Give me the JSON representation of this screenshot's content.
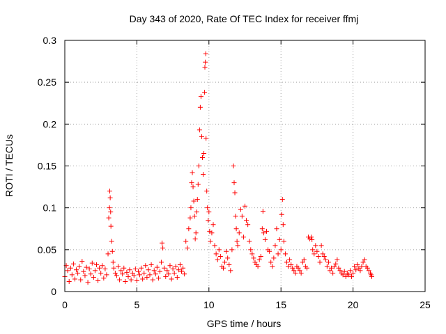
{
  "chart_data": {
    "type": "scatter",
    "title": "Day 343 of 2020, Rate Of TEC Index for receiver ffmj",
    "xlabel": "GPS time / hours",
    "ylabel": "ROTI / TECUs",
    "xlim": [
      0,
      25
    ],
    "ylim": [
      0,
      0.3
    ],
    "xticks": [
      "0",
      "5",
      "10",
      "15",
      "20",
      "25"
    ],
    "yticks": [
      "0",
      "0.05",
      "0.1",
      "0.15",
      "0.2",
      "0.25",
      "0.3"
    ],
    "grid": true,
    "marker": "plus",
    "color": "#ff0000",
    "series": [
      {
        "points": [
          [
            0.0,
            0.018
          ],
          [
            0.1,
            0.031
          ],
          [
            0.2,
            0.025
          ],
          [
            0.3,
            0.012
          ],
          [
            0.4,
            0.028
          ],
          [
            0.5,
            0.02
          ],
          [
            0.6,
            0.033
          ],
          [
            0.7,
            0.015
          ],
          [
            0.8,
            0.026
          ],
          [
            0.9,
            0.022
          ],
          [
            1.0,
            0.03
          ],
          [
            1.1,
            0.014
          ],
          [
            1.2,
            0.036
          ],
          [
            1.3,
            0.024
          ],
          [
            1.4,
            0.019
          ],
          [
            1.5,
            0.029
          ],
          [
            1.6,
            0.011
          ],
          [
            1.7,
            0.027
          ],
          [
            1.8,
            0.021
          ],
          [
            1.9,
            0.034
          ],
          [
            2.0,
            0.017
          ],
          [
            2.1,
            0.025
          ],
          [
            2.2,
            0.032
          ],
          [
            2.3,
            0.013
          ],
          [
            2.4,
            0.028
          ],
          [
            2.5,
            0.022
          ],
          [
            2.6,
            0.031
          ],
          [
            2.7,
            0.016
          ],
          [
            2.8,
            0.027
          ],
          [
            2.9,
            0.02
          ],
          [
            3.0,
            0.045
          ],
          [
            3.05,
            0.088
          ],
          [
            3.1,
            0.1
          ],
          [
            3.12,
            0.12
          ],
          [
            3.15,
            0.112
          ],
          [
            3.18,
            0.095
          ],
          [
            3.2,
            0.078
          ],
          [
            3.25,
            0.06
          ],
          [
            3.3,
            0.048
          ],
          [
            3.35,
            0.035
          ],
          [
            3.4,
            0.028
          ],
          [
            3.5,
            0.022
          ],
          [
            3.6,
            0.019
          ],
          [
            3.7,
            0.03
          ],
          [
            3.8,
            0.014
          ],
          [
            3.9,
            0.025
          ],
          [
            4.0,
            0.021
          ],
          [
            4.1,
            0.028
          ],
          [
            4.2,
            0.012
          ],
          [
            4.3,
            0.023
          ],
          [
            4.4,
            0.018
          ],
          [
            4.5,
            0.026
          ],
          [
            4.6,
            0.014
          ],
          [
            4.7,
            0.022
          ],
          [
            4.8,
            0.019
          ],
          [
            4.9,
            0.027
          ],
          [
            5.0,
            0.013
          ],
          [
            5.1,
            0.024
          ],
          [
            5.2,
            0.02
          ],
          [
            5.3,
            0.028
          ],
          [
            5.4,
            0.015
          ],
          [
            5.5,
            0.022
          ],
          [
            5.6,
            0.031
          ],
          [
            5.7,
            0.017
          ],
          [
            5.8,
            0.026
          ],
          [
            5.9,
            0.02
          ],
          [
            6.0,
            0.032
          ],
          [
            6.1,
            0.014
          ],
          [
            6.2,
            0.025
          ],
          [
            6.3,
            0.021
          ],
          [
            6.4,
            0.029
          ],
          [
            6.5,
            0.016
          ],
          [
            6.6,
            0.024
          ],
          [
            6.7,
            0.035
          ],
          [
            6.75,
            0.058
          ],
          [
            6.8,
            0.052
          ],
          [
            6.9,
            0.028
          ],
          [
            7.0,
            0.018
          ],
          [
            7.1,
            0.025
          ],
          [
            7.2,
            0.021
          ],
          [
            7.3,
            0.031
          ],
          [
            7.4,
            0.015
          ],
          [
            7.5,
            0.027
          ],
          [
            7.6,
            0.022
          ],
          [
            7.7,
            0.03
          ],
          [
            7.8,
            0.017
          ],
          [
            7.9,
            0.026
          ],
          [
            8.0,
            0.032
          ],
          [
            8.1,
            0.024
          ],
          [
            8.2,
            0.028
          ],
          [
            8.3,
            0.021
          ],
          [
            8.4,
            0.06
          ],
          [
            8.5,
            0.052
          ],
          [
            8.6,
            0.075
          ],
          [
            8.7,
            0.088
          ],
          [
            8.75,
            0.1
          ],
          [
            8.8,
            0.13
          ],
          [
            8.85,
            0.142
          ],
          [
            8.9,
            0.125
          ],
          [
            8.95,
            0.108
          ],
          [
            9.0,
            0.09
          ],
          [
            9.05,
            0.063
          ],
          [
            9.1,
            0.07
          ],
          [
            9.15,
            0.095
          ],
          [
            9.2,
            0.11
          ],
          [
            9.25,
            0.128
          ],
          [
            9.3,
            0.15
          ],
          [
            9.35,
            0.193
          ],
          [
            9.4,
            0.22
          ],
          [
            9.45,
            0.233
          ],
          [
            9.5,
            0.185
          ],
          [
            9.55,
            0.16
          ],
          [
            9.6,
            0.14
          ],
          [
            9.65,
            0.165
          ],
          [
            9.7,
            0.238
          ],
          [
            9.72,
            0.268
          ],
          [
            9.75,
            0.274
          ],
          [
            9.78,
            0.284
          ],
          [
            9.8,
            0.183
          ],
          [
            9.85,
            0.12
          ],
          [
            9.9,
            0.1
          ],
          [
            9.95,
            0.085
          ],
          [
            10.0,
            0.095
          ],
          [
            10.05,
            0.072
          ],
          [
            10.1,
            0.06
          ],
          [
            10.2,
            0.07
          ],
          [
            10.3,
            0.08
          ],
          [
            10.4,
            0.055
          ],
          [
            10.5,
            0.045
          ],
          [
            10.6,
            0.038
          ],
          [
            10.7,
            0.05
          ],
          [
            10.8,
            0.042
          ],
          [
            10.9,
            0.03
          ],
          [
            11.0,
            0.028
          ],
          [
            11.1,
            0.035
          ],
          [
            11.2,
            0.048
          ],
          [
            11.3,
            0.04
          ],
          [
            11.4,
            0.032
          ],
          [
            11.5,
            0.025
          ],
          [
            11.6,
            0.05
          ],
          [
            11.7,
            0.15
          ],
          [
            11.75,
            0.13
          ],
          [
            11.8,
            0.118
          ],
          [
            11.85,
            0.09
          ],
          [
            11.9,
            0.075
          ],
          [
            11.95,
            0.06
          ],
          [
            12.0,
            0.055
          ],
          [
            12.1,
            0.07
          ],
          [
            12.2,
            0.098
          ],
          [
            12.3,
            0.09
          ],
          [
            12.4,
            0.065
          ],
          [
            12.5,
            0.102
          ],
          [
            12.6,
            0.085
          ],
          [
            12.7,
            0.08
          ],
          [
            12.8,
            0.06
          ],
          [
            12.9,
            0.05
          ],
          [
            13.0,
            0.045
          ],
          [
            13.1,
            0.04
          ],
          [
            13.2,
            0.035
          ],
          [
            13.3,
            0.032
          ],
          [
            13.4,
            0.03
          ],
          [
            13.5,
            0.038
          ],
          [
            13.6,
            0.042
          ],
          [
            13.7,
            0.075
          ],
          [
            13.75,
            0.096
          ],
          [
            13.8,
            0.07
          ],
          [
            13.9,
            0.062
          ],
          [
            14.0,
            0.072
          ],
          [
            14.1,
            0.05
          ],
          [
            14.2,
            0.048
          ],
          [
            14.3,
            0.035
          ],
          [
            14.4,
            0.03
          ],
          [
            14.5,
            0.04
          ],
          [
            14.6,
            0.055
          ],
          [
            14.7,
            0.075
          ],
          [
            14.8,
            0.045
          ],
          [
            14.9,
            0.062
          ],
          [
            15.0,
            0.05
          ],
          [
            15.05,
            0.092
          ],
          [
            15.1,
            0.11
          ],
          [
            15.15,
            0.08
          ],
          [
            15.2,
            0.06
          ],
          [
            15.3,
            0.045
          ],
          [
            15.4,
            0.035
          ],
          [
            15.5,
            0.03
          ],
          [
            15.6,
            0.038
          ],
          [
            15.7,
            0.032
          ],
          [
            15.8,
            0.028
          ],
          [
            15.9,
            0.025
          ],
          [
            16.0,
            0.022
          ],
          [
            16.1,
            0.03
          ],
          [
            16.2,
            0.028
          ],
          [
            16.3,
            0.025
          ],
          [
            16.4,
            0.022
          ],
          [
            16.5,
            0.035
          ],
          [
            16.6,
            0.038
          ],
          [
            16.7,
            0.03
          ],
          [
            16.8,
            0.028
          ],
          [
            16.9,
            0.065
          ],
          [
            17.0,
            0.063
          ],
          [
            17.1,
            0.065
          ],
          [
            17.15,
            0.062
          ],
          [
            17.2,
            0.05
          ],
          [
            17.3,
            0.045
          ],
          [
            17.4,
            0.055
          ],
          [
            17.5,
            0.048
          ],
          [
            17.6,
            0.042
          ],
          [
            17.7,
            0.035
          ],
          [
            17.8,
            0.055
          ],
          [
            17.9,
            0.045
          ],
          [
            18.0,
            0.042
          ],
          [
            18.1,
            0.038
          ],
          [
            18.2,
            0.03
          ],
          [
            18.3,
            0.035
          ],
          [
            18.4,
            0.025
          ],
          [
            18.5,
            0.028
          ],
          [
            18.6,
            0.022
          ],
          [
            18.7,
            0.03
          ],
          [
            18.8,
            0.033
          ],
          [
            18.9,
            0.038
          ],
          [
            19.0,
            0.028
          ],
          [
            19.1,
            0.025
          ],
          [
            19.2,
            0.022
          ],
          [
            19.3,
            0.02
          ],
          [
            19.4,
            0.024
          ],
          [
            19.5,
            0.018
          ],
          [
            19.6,
            0.022
          ],
          [
            19.7,
            0.02
          ],
          [
            19.8,
            0.025
          ],
          [
            19.9,
            0.018
          ],
          [
            20.0,
            0.022
          ],
          [
            20.1,
            0.03
          ],
          [
            20.2,
            0.026
          ],
          [
            20.3,
            0.032
          ],
          [
            20.4,
            0.028
          ],
          [
            20.5,
            0.025
          ],
          [
            20.6,
            0.03
          ],
          [
            20.7,
            0.035
          ],
          [
            20.8,
            0.038
          ],
          [
            20.9,
            0.03
          ],
          [
            21.0,
            0.028
          ],
          [
            21.1,
            0.025
          ],
          [
            21.2,
            0.022
          ],
          [
            21.25,
            0.02
          ],
          [
            21.3,
            0.018
          ]
        ]
      }
    ]
  }
}
